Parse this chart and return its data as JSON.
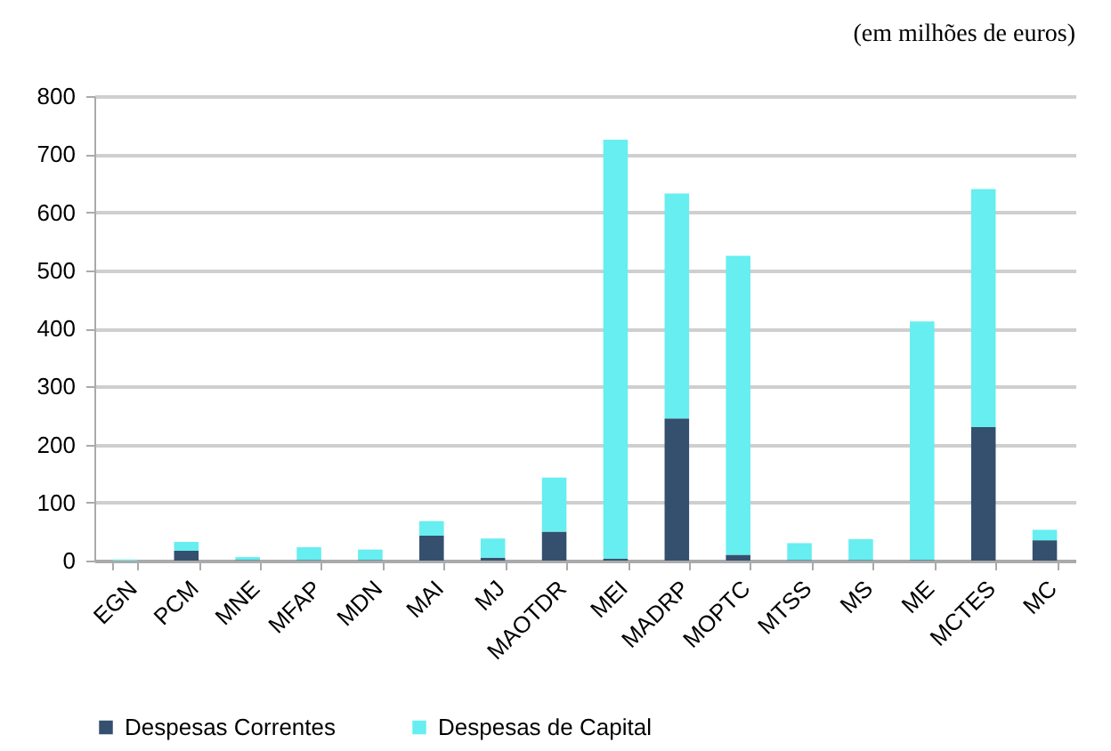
{
  "chart_data": {
    "type": "bar",
    "stacked": true,
    "annotations": [
      "(em milhões de euros)"
    ],
    "categories": [
      "EGN",
      "PCM",
      "MNE",
      "MFAP",
      "MDN",
      "MAI",
      "MJ",
      "MAOTDR",
      "MEI",
      "MADRP",
      "MOPTC",
      "MTSS",
      "MS",
      "ME",
      "MCTES",
      "MC"
    ],
    "series": [
      {
        "name": "Despesas Correntes",
        "color": "#34506e",
        "values": [
          0,
          17,
          1,
          1,
          1,
          43,
          5,
          50,
          3,
          245,
          10,
          1,
          1,
          1,
          230,
          35
        ]
      },
      {
        "name": "Despesas de Capital",
        "color": "#66eef0",
        "values": [
          2,
          15,
          5,
          22,
          18,
          25,
          33,
          93,
          722,
          387,
          515,
          29,
          36,
          411,
          410,
          18
        ]
      }
    ],
    "ylim": [
      0,
      800
    ],
    "yticks": [
      0,
      100,
      200,
      300,
      400,
      500,
      600,
      700,
      800
    ],
    "grid": "y",
    "legend": "bottom"
  }
}
